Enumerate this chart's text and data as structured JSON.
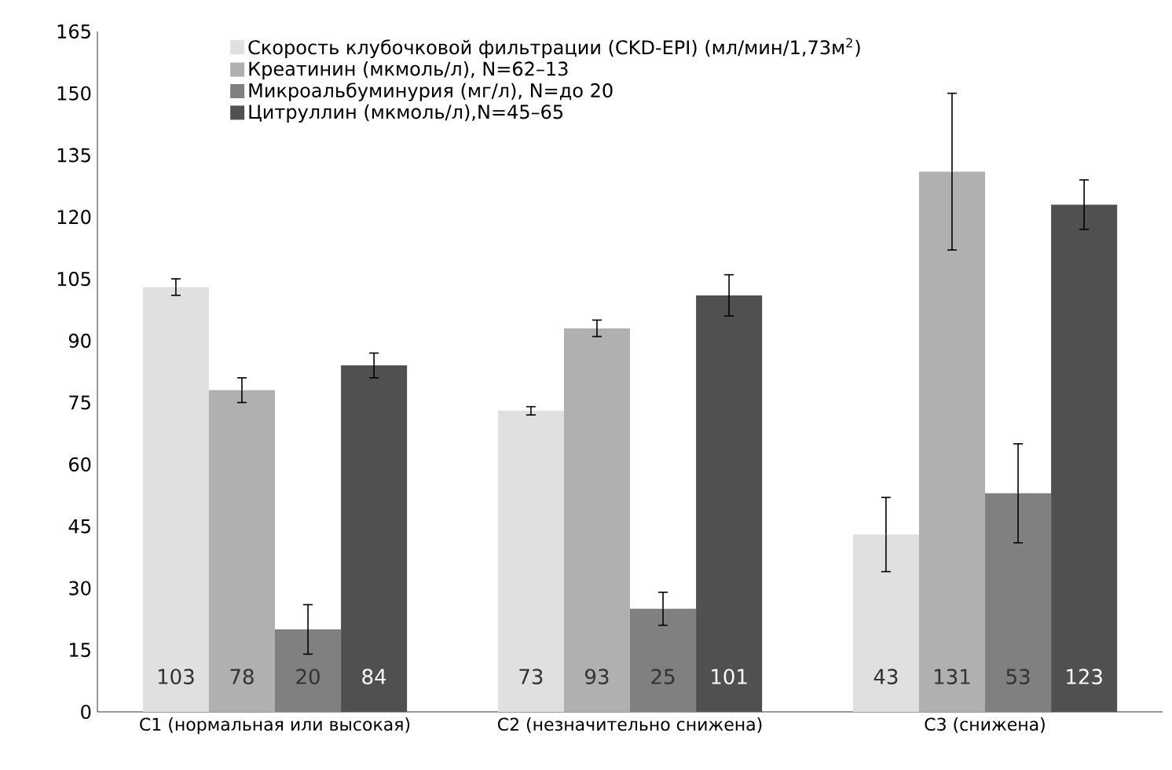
{
  "chart_data": {
    "type": "bar",
    "categories": [
      "С1 (нормальная или высокая)",
      "С2 (незначительно снижена)",
      "С3 (снижена)"
    ],
    "series": [
      {
        "name": "Скорость клубочковой фильтрации (CKD-EPI) (мл/мин/1,73м$^{2}$)",
        "color": "#e0e0e0",
        "values": [
          103,
          73,
          43
        ],
        "errors": [
          2,
          1,
          9
        ]
      },
      {
        "name": "Креатинин (мкмоль/л), N=62–13",
        "color": "#b0b0b0",
        "values": [
          78,
          93,
          131
        ],
        "errors": [
          3,
          2,
          19
        ]
      },
      {
        "name": "Микроальбуминурия (мг/л), N=до 20",
        "color": "#808080",
        "values": [
          20,
          25,
          53
        ],
        "errors": [
          6,
          4,
          12
        ]
      },
      {
        "name": "Цитруллин (мкмоль/л),N=45–65",
        "color": "#505050",
        "values": [
          84,
          101,
          123
        ],
        "errors": [
          3,
          5,
          6
        ]
      }
    ],
    "ylim": [
      0,
      165
    ],
    "yticks": [
      0,
      15,
      30,
      45,
      60,
      75,
      90,
      105,
      120,
      135,
      150,
      165
    ],
    "data_labels": true,
    "legend": "top left",
    "grid": false
  }
}
